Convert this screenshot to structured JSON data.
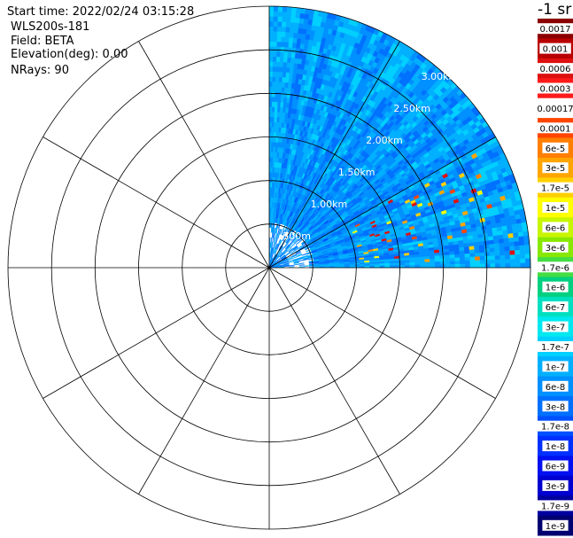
{
  "info": {
    "start_time": "Start time: 2022/02/24 03:15:28",
    "instrument": "WLS200s-181",
    "field": "Field: BETA",
    "elevation": "Elevation(deg): 0.00",
    "nrays": "NRays: 90"
  },
  "colorbar": {
    "unit_label": "-1 sr",
    "labels": [
      "0.0017",
      "0.001",
      "0.0006",
      "0.0003",
      "0.00017",
      "0.0001",
      "6e-5",
      "3e-5",
      "1.7e-5",
      "1e-5",
      "6e-6",
      "3e-6",
      "1.7e-6",
      "1e-6",
      "6e-7",
      "3e-7",
      "1.7e-7",
      "1e-7",
      "6e-8",
      "3e-8",
      "1.7e-8",
      "1e-8",
      "6e-9",
      "3e-9",
      "1.7e-9",
      "1e-9"
    ],
    "colors": [
      "#8b0000",
      "#b80000",
      "#dd1010",
      "#ff1a1a",
      "#ffffff",
      "#ff4500",
      "#ff7f00",
      "#ffa500",
      "#ffd000",
      "#ffff00",
      "#c8f500",
      "#88e800",
      "#44dd44",
      "#00d080",
      "#00e0c0",
      "#00e8f0",
      "#00d0ff",
      "#00b0ff",
      "#0090ff",
      "#0070ff",
      "#0050ff",
      "#0030ff",
      "#0010f0",
      "#0000d0",
      "#0000a0",
      "#000070"
    ]
  },
  "chart_data": {
    "type": "heatmap",
    "projection": "polar PPI",
    "range_labels": [
      "500m",
      "1.00km",
      "1.50km",
      "2.00km",
      "2.50km",
      "3.00km"
    ],
    "range_values_km": [
      0.5,
      1.0,
      1.5,
      2.0,
      2.5,
      3.0
    ],
    "max_range_km": 3.0,
    "azimuth_coverage_deg": [
      0,
      90
    ],
    "ray_count": 90,
    "gate_count": 52,
    "spokes_deg": [
      0,
      30,
      60,
      90,
      120,
      150,
      180,
      210,
      240,
      270,
      300,
      330
    ]
  }
}
